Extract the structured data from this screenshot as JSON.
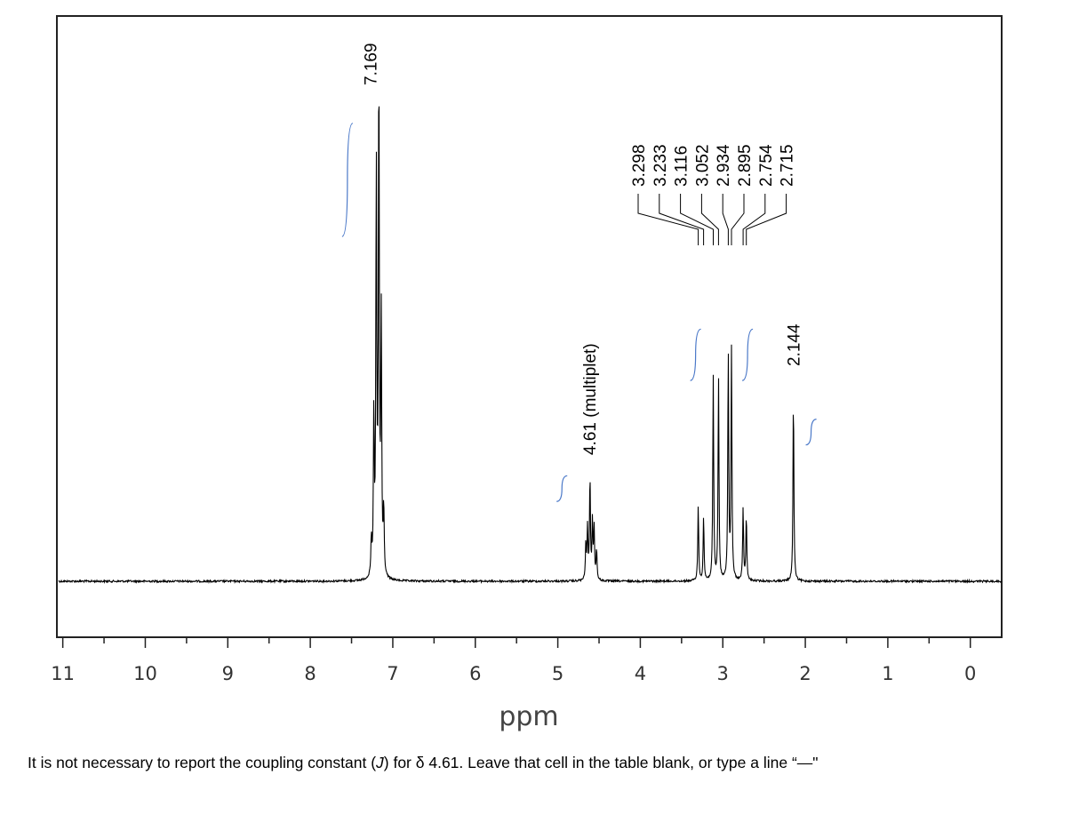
{
  "chart_data": {
    "type": "line",
    "xlabel": "ppm",
    "xlim": [
      11.05,
      -0.38
    ],
    "x_reversed": true,
    "x_ticks": [
      11,
      10,
      9,
      8,
      7,
      6,
      5,
      4,
      3,
      2,
      1,
      0
    ],
    "x_tick_labels": [
      "11",
      "10",
      "9",
      "8",
      "7",
      "6",
      "5",
      "4",
      "3",
      "2",
      "1",
      "0"
    ],
    "peaks": [
      {
        "ppm": 7.169,
        "height": 1.0
      },
      {
        "ppm": 7.2,
        "height": 0.8
      },
      {
        "ppm": 7.14,
        "height": 0.5
      },
      {
        "ppm": 7.23,
        "height": 0.31
      },
      {
        "ppm": 7.11,
        "height": 0.13
      },
      {
        "ppm": 7.26,
        "height": 0.07
      },
      {
        "ppm": 4.61,
        "height": 0.2
      },
      {
        "ppm": 4.64,
        "height": 0.1
      },
      {
        "ppm": 4.58,
        "height": 0.11
      },
      {
        "ppm": 4.56,
        "height": 0.1
      },
      {
        "ppm": 4.66,
        "height": 0.07
      },
      {
        "ppm": 4.53,
        "height": 0.06
      },
      {
        "ppm": 3.298,
        "height": 0.145
      },
      {
        "ppm": 3.233,
        "height": 0.125
      },
      {
        "ppm": 3.116,
        "height": 0.395
      },
      {
        "ppm": 3.052,
        "height": 0.395
      },
      {
        "ppm": 2.934,
        "height": 0.445
      },
      {
        "ppm": 2.895,
        "height": 0.445
      },
      {
        "ppm": 2.754,
        "height": 0.14
      },
      {
        "ppm": 2.715,
        "height": 0.125
      },
      {
        "ppm": 2.144,
        "height": 0.36
      }
    ],
    "peak_labels": [
      {
        "text": "7.169",
        "ppm": 7.169
      },
      {
        "text": "4.61 (multiplet)",
        "ppm": 4.61
      },
      {
        "text": "2.144",
        "ppm": 2.144
      },
      {
        "text": "3.298",
        "ppm": 3.298
      },
      {
        "text": "3.233",
        "ppm": 3.233
      },
      {
        "text": "3.116",
        "ppm": 3.116
      },
      {
        "text": "3.052",
        "ppm": 3.052
      },
      {
        "text": "2.934",
        "ppm": 2.934
      },
      {
        "text": "2.895",
        "ppm": 2.895
      },
      {
        "text": "2.754",
        "ppm": 2.754
      },
      {
        "text": "2.715",
        "ppm": 2.715
      }
    ],
    "integrals": [
      {
        "center_ppm": 7.55,
        "level": 0.78,
        "span": 0.22
      },
      {
        "center_ppm": 4.95,
        "level": 0.18,
        "span": 0.05
      },
      {
        "center_ppm": 3.33,
        "level": 0.44,
        "span": 0.1
      },
      {
        "center_ppm": 2.7,
        "level": 0.44,
        "span": 0.1
      },
      {
        "center_ppm": 1.93,
        "level": 0.29,
        "span": 0.05
      }
    ],
    "colors": {
      "spectrum": "#000000",
      "integral": "#4a78c8",
      "frame": "#222222"
    }
  },
  "footnote": {
    "before_j": "It is not necessary to report the coupling constant (",
    "j": "J",
    "after_j": ") for δ 4.61. Leave that cell in the table blank, or type a line “—\""
  }
}
